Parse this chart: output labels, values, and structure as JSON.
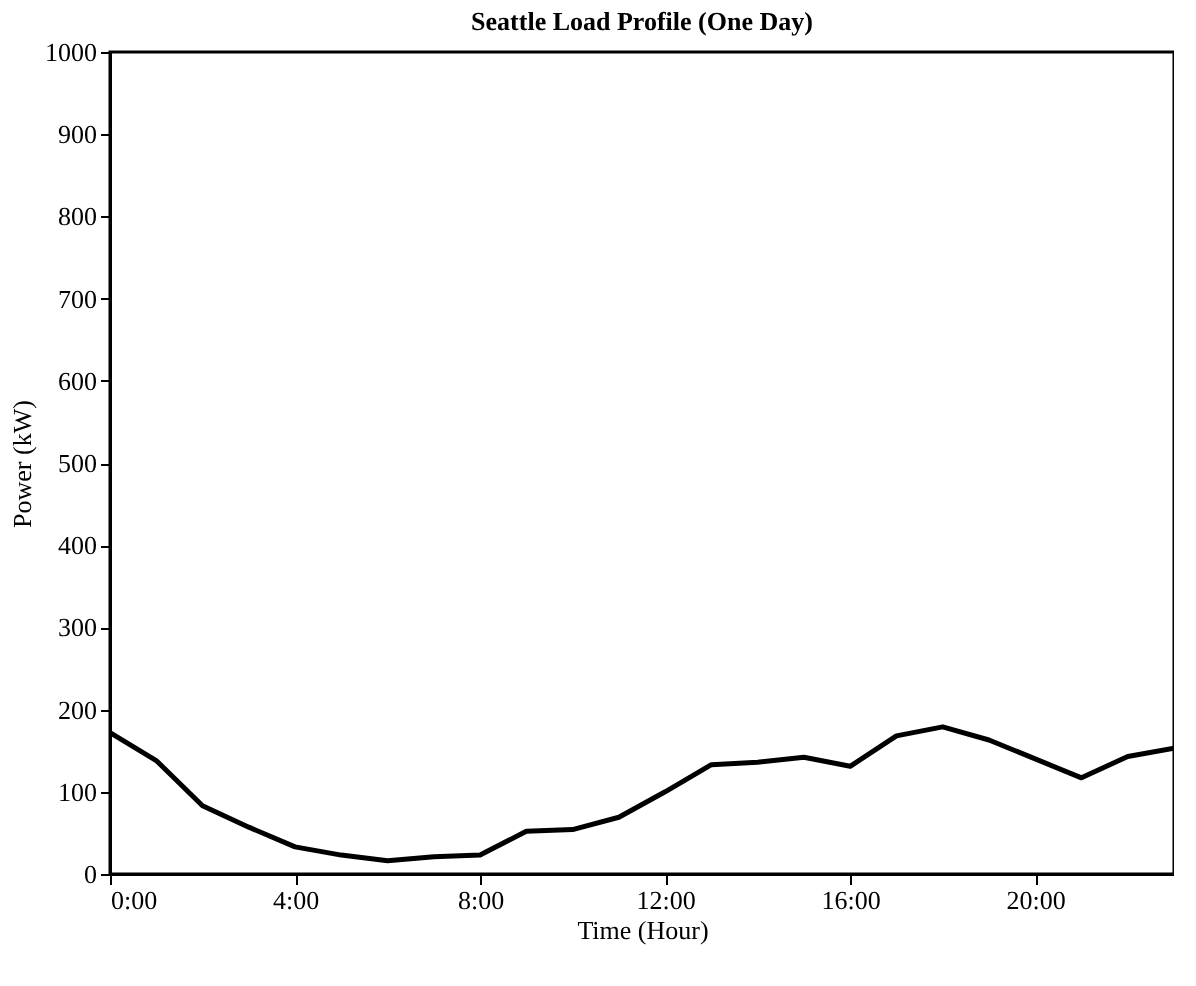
{
  "chart_data": {
    "type": "line",
    "title": "Seattle Load Profile (One Day)",
    "xlabel": "Time (Hour)",
    "ylabel": "Power (kW)",
    "x": [
      0,
      1,
      2,
      3,
      4,
      5,
      6,
      7,
      8,
      9,
      10,
      11,
      12,
      13,
      14,
      15,
      16,
      17,
      18,
      19,
      20,
      21,
      22,
      23
    ],
    "series": [
      {
        "color": "#000000",
        "values": [
          172,
          138,
          83,
          57,
          33,
          23,
          16,
          21,
          23,
          52,
          54,
          69,
          100,
          133,
          136,
          142,
          131,
          168,
          179,
          163,
          140,
          117,
          143,
          153
        ]
      }
    ],
    "xlim": [
      0,
      23
    ],
    "xticks": [
      {
        "value": 0,
        "label": "0:00"
      },
      {
        "value": 4,
        "label": "4:00"
      },
      {
        "value": 8,
        "label": "8:00"
      },
      {
        "value": 12,
        "label": "12:00"
      },
      {
        "value": 16,
        "label": "16:00"
      },
      {
        "value": 20,
        "label": "20:00"
      }
    ],
    "ylim": [
      0,
      1000
    ],
    "yticks": [
      0,
      100,
      200,
      300,
      400,
      500,
      600,
      700,
      800,
      900,
      1000
    ],
    "grid": false,
    "marker": "none",
    "line_style": "solid"
  }
}
